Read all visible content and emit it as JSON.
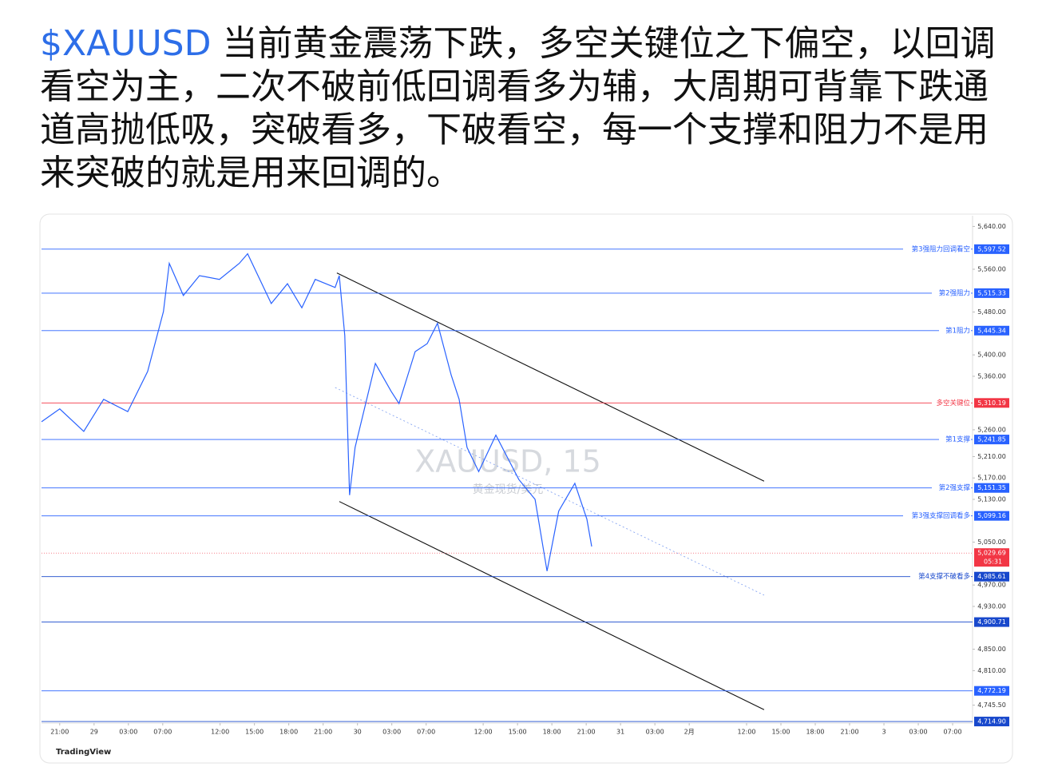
{
  "post": {
    "ticker": "$XAUUSD",
    "text": "当前黄金震荡下跌，多空关键位之下偏空，以回调看空为主，二次不破前低回调看多为辅，大周期可背靠下跌通道高抛低吸，突破看多，下破看空，每一个支撑和阻力不是用来突破的就是用来回调的。"
  },
  "chart_data": {
    "type": "line",
    "title": "XAUUSD, 15",
    "subtitle": "黄金现货/美元",
    "brand": "TradingView",
    "x": [
      -0.53,
      0,
      0.7,
      1.28,
      1.98,
      2.56,
      3.02,
      3.19,
      3.6,
      4.07,
      4.65,
      5.23,
      5.47,
      6.16,
      6.63,
      7.05,
      7.44,
      8.02,
      8.14,
      8.3,
      8.44,
      8.6,
      9.19,
      9.65,
      9.88,
      10.35,
      10.7,
      11.0,
      11.4,
      11.63,
      11.86,
      12.2,
      12.7,
      13.37,
      13.84,
      14.19,
      14.53,
      15.0,
      15.35,
      15.49
    ],
    "values": [
      5275,
      5299,
      5257,
      5317,
      5294,
      5369,
      5481,
      5571,
      5511,
      5548,
      5541,
      5571,
      5589,
      5496,
      5533,
      5488,
      5541,
      5526,
      5548,
      5436,
      5138,
      5227,
      5384,
      5332,
      5309,
      5406,
      5421,
      5459,
      5362,
      5317,
      5227,
      5182,
      5250,
      5167,
      5130,
      4996,
      5108,
      5160,
      5093,
      5042
    ],
    "color": "#2962ff",
    "xlim": [
      -0.53,
      26.58
    ],
    "ylim": [
      4712,
      5660
    ],
    "xticks": [
      {
        "value": 0,
        "label": "21:00"
      },
      {
        "value": 1,
        "label": "29"
      },
      {
        "value": 2,
        "label": "03:00"
      },
      {
        "value": 3,
        "label": "07:00"
      },
      {
        "value": 4.67,
        "label": "12:00"
      },
      {
        "value": 5.67,
        "label": "15:00"
      },
      {
        "value": 6.67,
        "label": "18:00"
      },
      {
        "value": 7.67,
        "label": "21:00"
      },
      {
        "value": 8.67,
        "label": "30"
      },
      {
        "value": 9.67,
        "label": "03:00"
      },
      {
        "value": 10.67,
        "label": "07:00"
      },
      {
        "value": 12.33,
        "label": "12:00"
      },
      {
        "value": 13.33,
        "label": "15:00"
      },
      {
        "value": 14.33,
        "label": "18:00"
      },
      {
        "value": 15.33,
        "label": "21:00"
      },
      {
        "value": 16.33,
        "label": "31"
      },
      {
        "value": 17.33,
        "label": "03:00"
      },
      {
        "value": 18.33,
        "label": "2月"
      },
      {
        "value": 20,
        "label": "12:00"
      },
      {
        "value": 21,
        "label": "15:00"
      },
      {
        "value": 22,
        "label": "18:00"
      },
      {
        "value": 23,
        "label": "21:00"
      },
      {
        "value": 24,
        "label": "3"
      },
      {
        "value": 25,
        "label": "03:00"
      },
      {
        "value": 26,
        "label": "07:00"
      }
    ],
    "yticks": [
      {
        "value": 5640,
        "label": "5,640.00"
      },
      {
        "value": 5560,
        "label": "5,560.00"
      },
      {
        "value": 5480,
        "label": "5,480.00"
      },
      {
        "value": 5400,
        "label": "5,400.00"
      },
      {
        "value": 5360,
        "label": "5,360.00"
      },
      {
        "value": 5260,
        "label": "5,260.00"
      },
      {
        "value": 5210,
        "label": "5,210.00"
      },
      {
        "value": 5170,
        "label": "5,170.00"
      },
      {
        "value": 5130,
        "label": "5,130.00"
      },
      {
        "value": 5050,
        "label": "5,050.00"
      },
      {
        "value": 4970,
        "label": "4,970.00"
      },
      {
        "value": 4930,
        "label": "4,930.00"
      },
      {
        "value": 4850,
        "label": "4,850.00"
      },
      {
        "value": 4810,
        "label": "4,810.00"
      },
      {
        "value": 4745.5,
        "label": "4,745.50"
      }
    ],
    "levels": {
      "names": [
        "第3强阻力回调看空",
        "第2强阻力",
        "第1阻力",
        "多空关键位",
        "第1支撑",
        "第2强支撑",
        "第3强支撑回调看多",
        "第4支撑不破看多",
        null,
        null,
        null
      ],
      "values": [
        5597.52,
        5515.33,
        5445.34,
        5310.19,
        5241.85,
        5151.35,
        5099.16,
        4985.61,
        4900.71,
        4772.19,
        4714.9
      ],
      "value_labels": [
        "5,597.52",
        "5,515.33",
        "5,445.34",
        "5,310.19",
        "5,241.85",
        "5,151.35",
        "5,099.16",
        "4,985.61",
        "4,900.71",
        "4,772.19",
        "4,714.90"
      ],
      "colors": [
        "#2962ff",
        "#2962ff",
        "#2962ff",
        "#f23645",
        "#2962ff",
        "#2962ff",
        "#2962ff",
        "#1848cc",
        "#1848cc",
        "#2962ff",
        "#1848cc"
      ]
    },
    "current": {
      "value": 5029.69,
      "label": "5,029.69",
      "countdown": "05:31",
      "color": "#f23645"
    },
    "trendlines": [
      {
        "x": [
          8.07,
          20.51
        ],
        "y": [
          5553,
          5164
        ],
        "style": "solid"
      },
      {
        "x": [
          8.14,
          20.51
        ],
        "y": [
          5126,
          4737
        ],
        "style": "solid"
      },
      {
        "x": [
          8.02,
          20.51
        ],
        "y": [
          5339,
          4951
        ],
        "style": "dotted"
      }
    ]
  }
}
